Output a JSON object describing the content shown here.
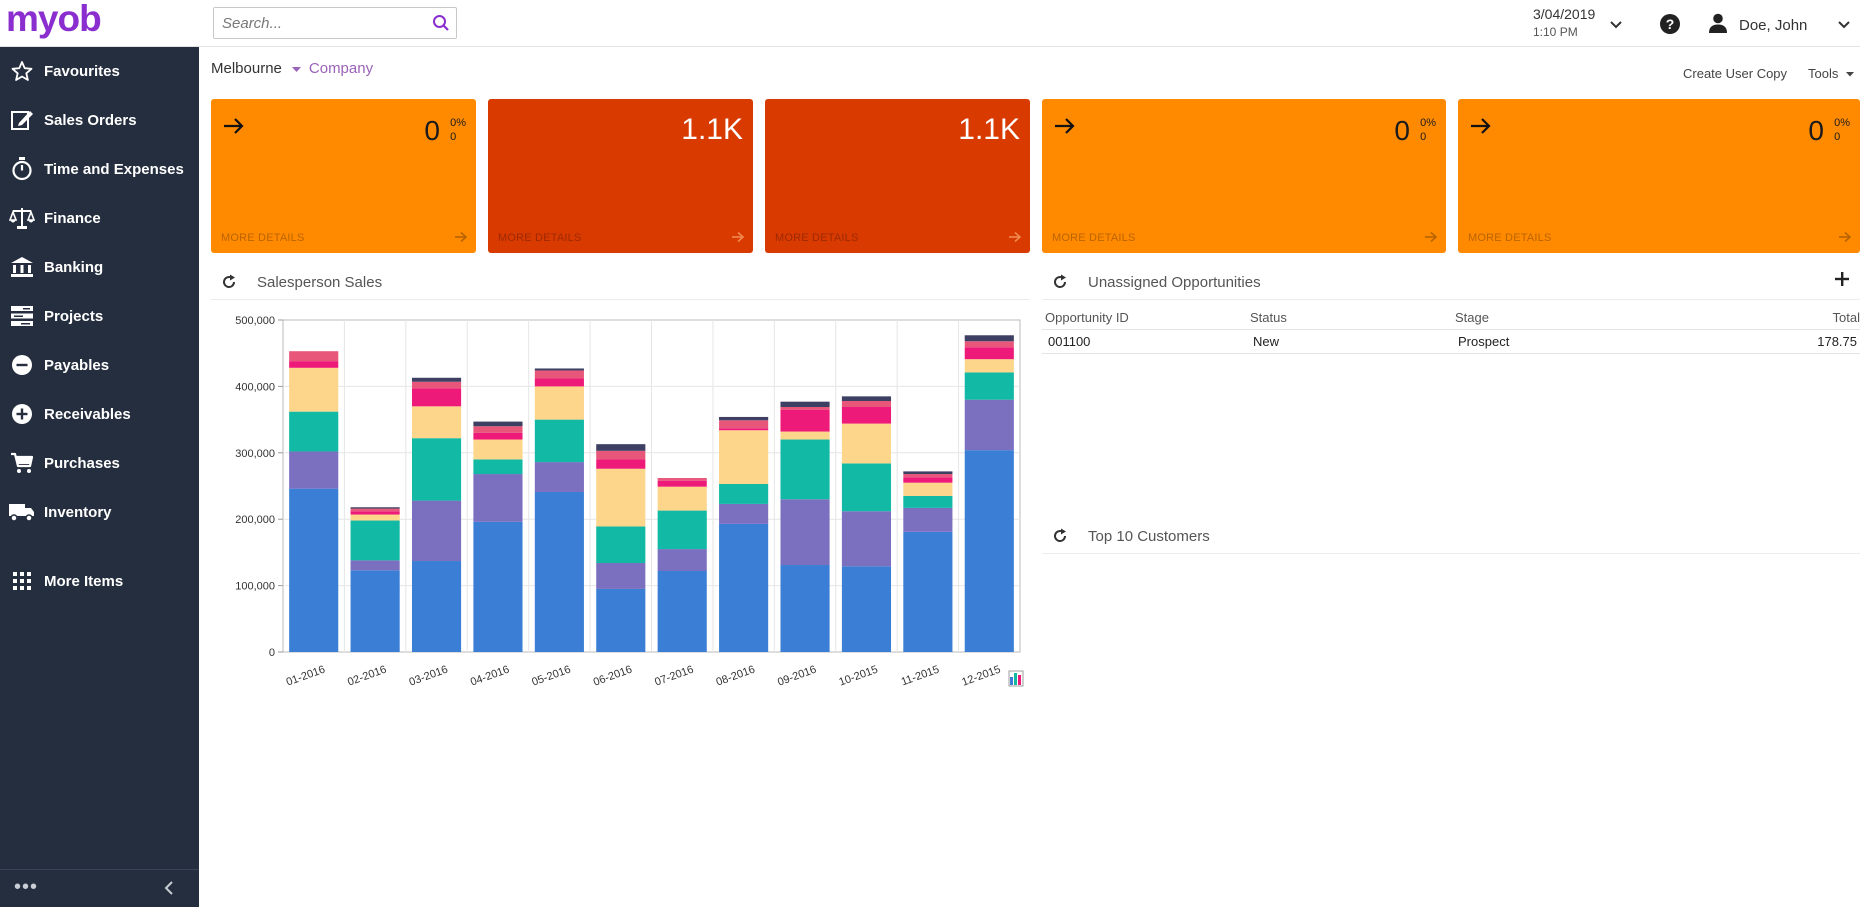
{
  "brand": {
    "name": "myob"
  },
  "search": {
    "placeholder": "Search..."
  },
  "datetime": {
    "date": "3/04/2019",
    "time": "1:10 PM"
  },
  "user": {
    "name": "Doe, John"
  },
  "sidebar": {
    "items": [
      {
        "label": "Favourites",
        "icon": "star-icon"
      },
      {
        "label": "Sales Orders",
        "icon": "edit-icon"
      },
      {
        "label": "Time and Expenses",
        "icon": "stopwatch-icon"
      },
      {
        "label": "Finance",
        "icon": "scales-icon"
      },
      {
        "label": "Banking",
        "icon": "bank-icon"
      },
      {
        "label": "Projects",
        "icon": "projects-icon"
      },
      {
        "label": "Payables",
        "icon": "minus-circle-icon"
      },
      {
        "label": "Receivables",
        "icon": "plus-circle-icon"
      },
      {
        "label": "Purchases",
        "icon": "cart-icon"
      },
      {
        "label": "Inventory",
        "icon": "truck-icon"
      },
      {
        "label": "More Items",
        "icon": "grid-icon"
      }
    ],
    "more_dots": "•••"
  },
  "breadcrumb": {
    "location": "Melbourne",
    "company": "Company"
  },
  "toolbar": {
    "create_user_copy": "Create User Copy",
    "tools": "Tools"
  },
  "tiles": [
    {
      "value": "0",
      "pct": "0%",
      "sub": "0",
      "more": "MORE DETAILS",
      "color": "#ff8a00",
      "has_arrow": true
    },
    {
      "value": "1.1K",
      "more": "MORE DETAILS",
      "color": "#d93a00",
      "has_arrow": false
    },
    {
      "value": "1.1K",
      "more": "MORE DETAILS",
      "color": "#d93a00",
      "has_arrow": false
    },
    {
      "value": "0",
      "pct": "0%",
      "sub": "0",
      "more": "MORE DETAILS",
      "color": "#ff8a00",
      "has_arrow": true
    },
    {
      "value": "0",
      "pct": "0%",
      "sub": "0",
      "more": "MORE DETAILS",
      "color": "#ff8a00",
      "has_arrow": true
    }
  ],
  "widgets": {
    "salesperson_sales": {
      "title": "Salesperson Sales"
    },
    "unassigned_opps": {
      "title": "Unassigned Opportunities",
      "columns": [
        "Opportunity ID",
        "Status",
        "Stage",
        "Total"
      ],
      "rows": [
        {
          "id": "001100",
          "status": "New",
          "stage": "Prospect",
          "total": "178.75"
        }
      ]
    },
    "top_customers": {
      "title": "Top 10 Customers"
    }
  },
  "chart_data": {
    "type": "bar",
    "stacked": true,
    "categories": [
      "01-2016",
      "02-2016",
      "03-2016",
      "04-2016",
      "05-2016",
      "06-2016",
      "07-2016",
      "08-2016",
      "09-2016",
      "10-2015",
      "11-2015",
      "12-2015"
    ],
    "ylim": [
      0,
      500000
    ],
    "yticks": [
      "0",
      "100,000",
      "200,000",
      "300,000",
      "400,000",
      "500,000"
    ],
    "grid": true,
    "colors": [
      "#3a7fd5",
      "#7b6fc0",
      "#12b9a5",
      "#fdd58b",
      "#ee1a79",
      "#e8567a",
      "#3d3f63"
    ],
    "series": [
      {
        "values": [
          246000,
          123000,
          137000,
          196000,
          241000,
          95000,
          122000,
          193000,
          131000,
          129000,
          181000,
          304000
        ]
      },
      {
        "values": [
          56000,
          15000,
          91000,
          72000,
          45000,
          39000,
          33000,
          30000,
          99000,
          83000,
          36000,
          76000
        ]
      },
      {
        "values": [
          60000,
          60000,
          94000,
          22000,
          64000,
          55000,
          58000,
          30000,
          90000,
          72000,
          18000,
          41000
        ]
      },
      {
        "values": [
          66000,
          9000,
          48000,
          30000,
          50000,
          87000,
          36000,
          81000,
          12000,
          60000,
          20000,
          20000
        ]
      },
      {
        "values": [
          10000,
          5000,
          27000,
          10000,
          12000,
          14000,
          9000,
          3000,
          33000,
          25000,
          8000,
          18000
        ]
      },
      {
        "values": [
          15000,
          4000,
          10000,
          10000,
          12000,
          13000,
          4000,
          12000,
          4000,
          9000,
          5000,
          9000
        ]
      },
      {
        "values": [
          0,
          2000,
          6000,
          7000,
          3000,
          10000,
          0,
          5000,
          8000,
          7000,
          4000,
          9000
        ]
      }
    ]
  }
}
